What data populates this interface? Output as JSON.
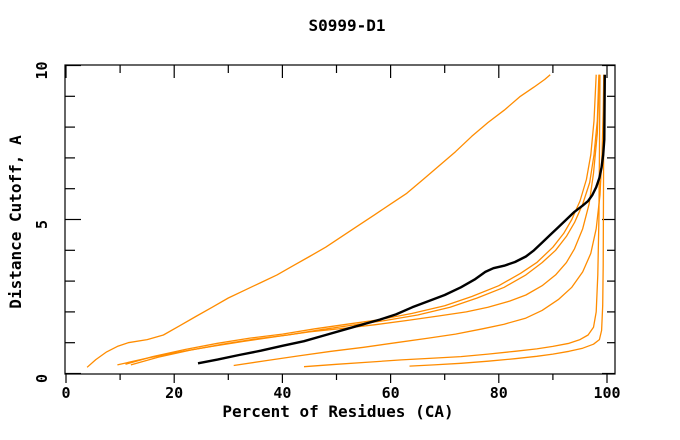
{
  "chart_data": {
    "type": "line",
    "title": "S0999-D1",
    "xlabel": "Percent of Residues (CA)",
    "ylabel": "Distance Cutoff, A",
    "xlim": [
      0,
      100
    ],
    "ylim": [
      0,
      10
    ],
    "grid": false,
    "legend": false,
    "x_major_ticks": [
      0,
      20,
      40,
      60,
      80,
      100
    ],
    "x_major_tick_labels": [
      "0",
      "20",
      "40",
      "60",
      "80",
      "100"
    ],
    "x_minor_ticks": [
      10,
      30,
      50,
      70,
      90
    ],
    "y_major_ticks": [
      0,
      5,
      10
    ],
    "y_major_tick_labels": [
      "0",
      "5",
      "10"
    ],
    "y_minor_ticks": [
      1,
      2,
      3,
      4,
      6,
      7,
      8,
      9
    ],
    "colors": {
      "model_curve": "#ff8c00",
      "highlight_curve": "#000000",
      "axis": "#000000",
      "background": "#ffffff"
    },
    "series": [
      {
        "name": "orange-curve-1",
        "color": "#ff8c00",
        "width": 1.3,
        "points": [
          [
            3.9,
            0.2
          ],
          [
            5.5,
            0.45
          ],
          [
            7.5,
            0.7
          ],
          [
            9.5,
            0.88
          ],
          [
            11.5,
            1.0
          ],
          [
            15,
            1.1
          ],
          [
            18,
            1.25
          ],
          [
            21,
            1.55
          ],
          [
            24,
            1.85
          ],
          [
            27,
            2.15
          ],
          [
            30,
            2.45
          ],
          [
            33,
            2.7
          ],
          [
            36,
            2.95
          ],
          [
            39,
            3.2
          ],
          [
            42,
            3.5
          ],
          [
            45,
            3.8
          ],
          [
            48,
            4.1
          ],
          [
            51,
            4.45
          ],
          [
            54,
            4.8
          ],
          [
            57,
            5.15
          ],
          [
            60,
            5.5
          ],
          [
            63,
            5.85
          ],
          [
            66,
            6.3
          ],
          [
            69,
            6.75
          ],
          [
            72,
            7.2
          ],
          [
            75,
            7.7
          ],
          [
            78,
            8.15
          ],
          [
            81,
            8.55
          ],
          [
            84,
            9.0
          ],
          [
            86.5,
            9.3
          ],
          [
            88.5,
            9.55
          ],
          [
            89.5,
            9.7
          ]
        ]
      },
      {
        "name": "orange-curve-2",
        "color": "#ff8c00",
        "width": 1.3,
        "points": [
          [
            9.5,
            0.28
          ],
          [
            15,
            0.5
          ],
          [
            21,
            0.7
          ],
          [
            27,
            0.88
          ],
          [
            33,
            1.05
          ],
          [
            39,
            1.2
          ],
          [
            45,
            1.35
          ],
          [
            51,
            1.46
          ],
          [
            57,
            1.58
          ],
          [
            63,
            1.72
          ],
          [
            69,
            1.87
          ],
          [
            74,
            2.0
          ],
          [
            78,
            2.15
          ],
          [
            82,
            2.35
          ],
          [
            85,
            2.55
          ],
          [
            88,
            2.85
          ],
          [
            90.5,
            3.2
          ],
          [
            92.5,
            3.6
          ],
          [
            94,
            4.05
          ],
          [
            95.5,
            4.7
          ],
          [
            96.7,
            5.5
          ],
          [
            97.5,
            6.5
          ],
          [
            98.2,
            7.8
          ],
          [
            98.6,
            9.7
          ]
        ]
      },
      {
        "name": "orange-curve-3",
        "color": "#ff8c00",
        "width": 1.3,
        "points": [
          [
            11,
            0.3
          ],
          [
            16,
            0.55
          ],
          [
            22,
            0.78
          ],
          [
            28,
            0.98
          ],
          [
            34,
            1.15
          ],
          [
            40,
            1.28
          ],
          [
            46,
            1.45
          ],
          [
            52,
            1.6
          ],
          [
            58,
            1.75
          ],
          [
            64,
            1.95
          ],
          [
            70,
            2.2
          ],
          [
            75,
            2.5
          ],
          [
            80,
            2.85
          ],
          [
            84,
            3.25
          ],
          [
            87,
            3.6
          ],
          [
            90,
            4.1
          ],
          [
            92,
            4.55
          ],
          [
            93.5,
            5.0
          ],
          [
            95,
            5.6
          ],
          [
            96.2,
            6.3
          ],
          [
            97,
            7.1
          ],
          [
            97.6,
            8.2
          ],
          [
            98,
            9.7
          ]
        ]
      },
      {
        "name": "orange-curve-4",
        "color": "#ff8c00",
        "width": 1.3,
        "points": [
          [
            12,
            0.28
          ],
          [
            17,
            0.53
          ],
          [
            23,
            0.76
          ],
          [
            29,
            0.95
          ],
          [
            35,
            1.12
          ],
          [
            41,
            1.25
          ],
          [
            47,
            1.42
          ],
          [
            53,
            1.57
          ],
          [
            59,
            1.72
          ],
          [
            65,
            1.9
          ],
          [
            71,
            2.15
          ],
          [
            76,
            2.45
          ],
          [
            81,
            2.8
          ],
          [
            85,
            3.2
          ],
          [
            88,
            3.6
          ],
          [
            90.5,
            4.0
          ],
          [
            92.5,
            4.45
          ],
          [
            94,
            4.9
          ],
          [
            95.5,
            5.5
          ],
          [
            96.8,
            6.2
          ],
          [
            97.6,
            7.1
          ],
          [
            98.2,
            8.2
          ],
          [
            98.5,
            9.7
          ]
        ]
      },
      {
        "name": "orange-curve-5",
        "color": "#ff8c00",
        "width": 1.3,
        "points": [
          [
            31,
            0.26
          ],
          [
            37,
            0.42
          ],
          [
            43,
            0.57
          ],
          [
            49,
            0.72
          ],
          [
            55,
            0.85
          ],
          [
            61,
            1.0
          ],
          [
            67,
            1.15
          ],
          [
            72,
            1.28
          ],
          [
            77,
            1.45
          ],
          [
            81,
            1.6
          ],
          [
            85,
            1.8
          ],
          [
            88,
            2.05
          ],
          [
            91,
            2.4
          ],
          [
            93.5,
            2.8
          ],
          [
            95.5,
            3.3
          ],
          [
            97,
            3.9
          ],
          [
            98,
            4.7
          ],
          [
            98.7,
            5.8
          ],
          [
            99.1,
            7.2
          ],
          [
            99.3,
            8.5
          ],
          [
            99.4,
            9.7
          ]
        ]
      },
      {
        "name": "orange-curve-6",
        "color": "#ff8c00",
        "width": 1.3,
        "points": [
          [
            44,
            0.22
          ],
          [
            50,
            0.3
          ],
          [
            56,
            0.37
          ],
          [
            62,
            0.44
          ],
          [
            68,
            0.5
          ],
          [
            73,
            0.55
          ],
          [
            78,
            0.63
          ],
          [
            83,
            0.72
          ],
          [
            87,
            0.8
          ],
          [
            90,
            0.88
          ],
          [
            93,
            0.98
          ],
          [
            95,
            1.1
          ],
          [
            96.5,
            1.25
          ],
          [
            97.5,
            1.5
          ],
          [
            98.0,
            2.0
          ],
          [
            98.3,
            3.2
          ],
          [
            98.5,
            5.0
          ],
          [
            98.6,
            7.0
          ],
          [
            98.7,
            9.7
          ]
        ]
      },
      {
        "name": "orange-curve-7",
        "color": "#ff8c00",
        "width": 1.3,
        "points": [
          [
            63.5,
            0.24
          ],
          [
            68,
            0.28
          ],
          [
            73,
            0.33
          ],
          [
            78,
            0.4
          ],
          [
            83,
            0.48
          ],
          [
            87,
            0.56
          ],
          [
            90,
            0.63
          ],
          [
            93,
            0.72
          ],
          [
            95.5,
            0.82
          ],
          [
            97.5,
            0.95
          ],
          [
            98.6,
            1.1
          ],
          [
            99.0,
            1.4
          ],
          [
            99.2,
            2.2
          ],
          [
            99.3,
            3.5
          ],
          [
            99.35,
            6.0
          ],
          [
            99.4,
            9.7
          ]
        ]
      },
      {
        "name": "black-curve",
        "color": "#000000",
        "width": 2.4,
        "points": [
          [
            24.4,
            0.33
          ],
          [
            28,
            0.45
          ],
          [
            32,
            0.6
          ],
          [
            36,
            0.74
          ],
          [
            40,
            0.9
          ],
          [
            44,
            1.05
          ],
          [
            48,
            1.25
          ],
          [
            52,
            1.45
          ],
          [
            55,
            1.6
          ],
          [
            58,
            1.75
          ],
          [
            61,
            1.92
          ],
          [
            64,
            2.15
          ],
          [
            67,
            2.35
          ],
          [
            70,
            2.55
          ],
          [
            73,
            2.8
          ],
          [
            75.5,
            3.05
          ],
          [
            77.5,
            3.3
          ],
          [
            79,
            3.42
          ],
          [
            81,
            3.5
          ],
          [
            83,
            3.62
          ],
          [
            85,
            3.8
          ],
          [
            86.5,
            4.0
          ],
          [
            88,
            4.25
          ],
          [
            89.5,
            4.5
          ],
          [
            91,
            4.75
          ],
          [
            92.5,
            5.0
          ],
          [
            94,
            5.25
          ],
          [
            95.5,
            5.45
          ],
          [
            96.5,
            5.6
          ],
          [
            97.3,
            5.8
          ],
          [
            98,
            6.05
          ],
          [
            98.6,
            6.35
          ],
          [
            99,
            6.7
          ],
          [
            99.3,
            7.1
          ],
          [
            99.5,
            7.6
          ],
          [
            99.6,
            9.7
          ]
        ]
      }
    ]
  }
}
